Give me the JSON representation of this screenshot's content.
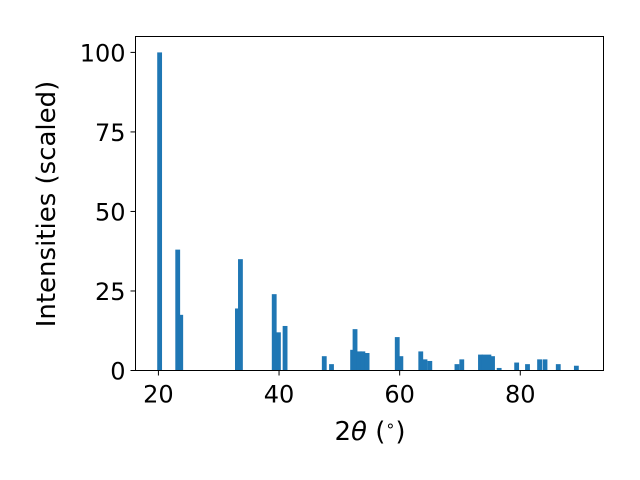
{
  "chart_data": {
    "type": "bar",
    "xlabel_parts": [
      "2",
      "θ",
      " (",
      "∘",
      ")"
    ],
    "ylabel": "Intensities (scaled)",
    "xlim": [
      16.2,
      93.8
    ],
    "ylim": [
      0,
      105
    ],
    "xticks": [
      20,
      40,
      60,
      80
    ],
    "yticks": [
      0,
      25,
      50,
      75,
      100
    ],
    "bar_width": 0.8,
    "color": "#1f77b4",
    "grid": false,
    "bars": [
      {
        "x": 20.2,
        "y": 100
      },
      {
        "x": 23.2,
        "y": 38
      },
      {
        "x": 23.7,
        "y": 17.5
      },
      {
        "x": 33.1,
        "y": 19.5
      },
      {
        "x": 33.6,
        "y": 35
      },
      {
        "x": 39.2,
        "y": 24
      },
      {
        "x": 39.9,
        "y": 12
      },
      {
        "x": 41.0,
        "y": 14
      },
      {
        "x": 47.5,
        "y": 4.5
      },
      {
        "x": 48.7,
        "y": 2
      },
      {
        "x": 52.2,
        "y": 6.5
      },
      {
        "x": 52.6,
        "y": 13
      },
      {
        "x": 53.3,
        "y": 6
      },
      {
        "x": 53.9,
        "y": 6
      },
      {
        "x": 54.6,
        "y": 5.5
      },
      {
        "x": 59.6,
        "y": 10.5
      },
      {
        "x": 60.2,
        "y": 4.5
      },
      {
        "x": 63.5,
        "y": 6
      },
      {
        "x": 64.2,
        "y": 3.5
      },
      {
        "x": 65.0,
        "y": 3
      },
      {
        "x": 69.5,
        "y": 2
      },
      {
        "x": 70.3,
        "y": 3.5
      },
      {
        "x": 73.4,
        "y": 5
      },
      {
        "x": 74.0,
        "y": 5
      },
      {
        "x": 74.8,
        "y": 5
      },
      {
        "x": 75.4,
        "y": 4.5
      },
      {
        "x": 76.5,
        "y": 0.8
      },
      {
        "x": 79.4,
        "y": 2.5
      },
      {
        "x": 81.2,
        "y": 2
      },
      {
        "x": 83.2,
        "y": 3.5
      },
      {
        "x": 84.1,
        "y": 3.5
      },
      {
        "x": 86.3,
        "y": 2
      },
      {
        "x": 89.3,
        "y": 1.5
      }
    ]
  }
}
